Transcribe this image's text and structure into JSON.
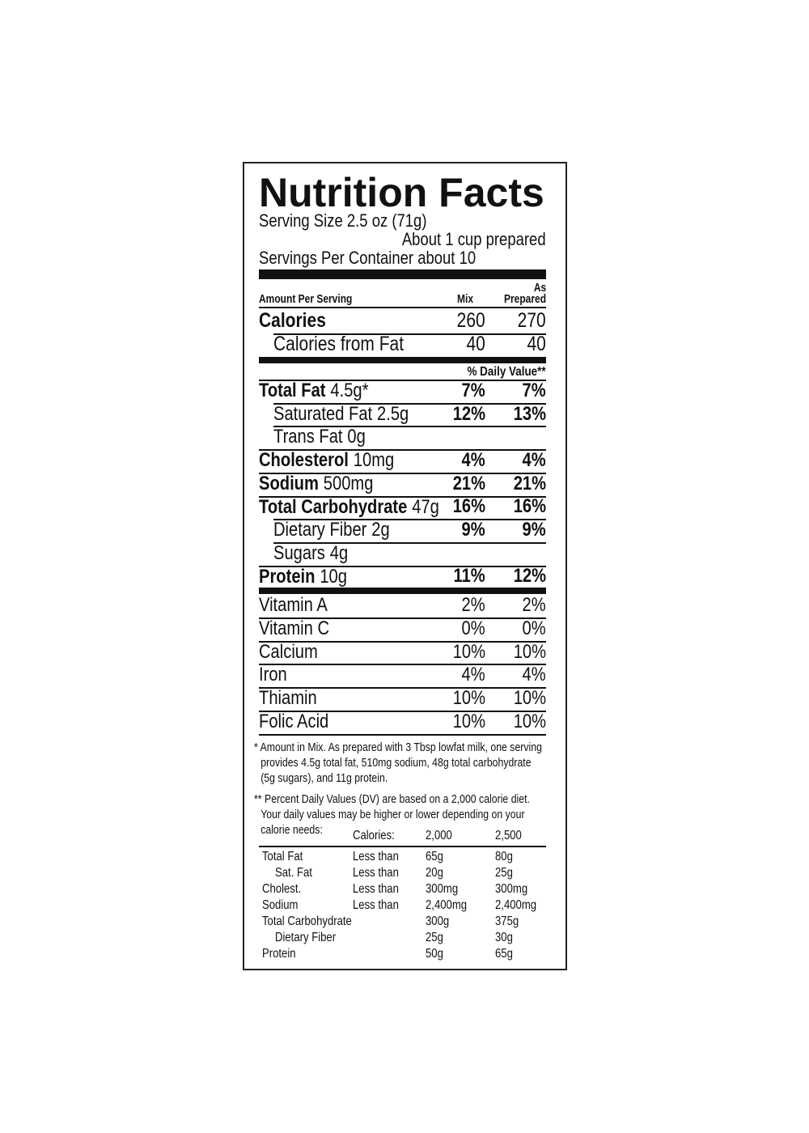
{
  "title": "Nutrition Facts",
  "serving_size": "Serving Size 2.5 oz (71g)",
  "serving_note": "About 1 cup prepared",
  "servings": "Servings Per Container about 10",
  "header": {
    "amount": "Amount Per Serving",
    "mix": "Mix",
    "prepared_as": "As",
    "prepared": "Prepared"
  },
  "calories": {
    "label": "Calories",
    "mix": "260",
    "prepared": "270"
  },
  "calories_fat": {
    "label": "Calories from Fat",
    "mix": "40",
    "prepared": "40"
  },
  "dv_header": "% Daily Value**",
  "nutrients": [
    {
      "name": "Total Fat",
      "amount": "4.5g*",
      "mix": "7%",
      "prepared": "7%"
    },
    {
      "name": "Saturated Fat",
      "amount": "2.5g",
      "mix": "12%",
      "prepared": "13%",
      "sub": true
    },
    {
      "name": "Trans Fat",
      "amount": "0g",
      "sub": true
    },
    {
      "name": "Cholesterol",
      "amount": "10mg",
      "mix": "4%",
      "prepared": "4%"
    },
    {
      "name": "Sodium",
      "amount": "500mg",
      "mix": "21%",
      "prepared": "21%"
    },
    {
      "name": "Total Carbohydrate",
      "amount": "47g",
      "mix": "16%",
      "prepared": "16%"
    },
    {
      "name": "Dietary Fiber",
      "amount": "2g",
      "mix": "9%",
      "prepared": "9%",
      "sub": true
    },
    {
      "name": "Sugars",
      "amount": "4g",
      "sub": true
    },
    {
      "name": "Protein",
      "amount": "10g",
      "mix": "11%",
      "prepared": "12%"
    }
  ],
  "vitamins": [
    {
      "name": "Vitamin A",
      "mix": "2%",
      "prepared": "2%"
    },
    {
      "name": "Vitamin C",
      "mix": "0%",
      "prepared": "0%"
    },
    {
      "name": "Calcium",
      "mix": "10%",
      "prepared": "10%"
    },
    {
      "name": "Iron",
      "mix": "4%",
      "prepared": "4%"
    },
    {
      "name": "Thiamin",
      "mix": "10%",
      "prepared": "10%"
    },
    {
      "name": "Folic Acid",
      "mix": "10%",
      "prepared": "10%"
    }
  ],
  "footnote_mix": "* Amount in Mix. As prepared with 3 Tbsp lowfat milk, one serving provides 4.5g total fat, 510mg sodium, 48g total carbohydrate (5g sugars), and 11g protein.",
  "footnote_dv": "** Percent Daily Values (DV) are based on a 2,000 calorie diet. Your daily values may be higher or lower depending on your calorie needs:",
  "dv_table": {
    "header": [
      "Calories:",
      "2,000",
      "2,500"
    ],
    "rows": [
      {
        "name": "Total Fat",
        "limit": "Less than",
        "v2000": "65g",
        "v2500": "80g"
      },
      {
        "name": "Sat. Fat",
        "limit": "Less than",
        "v2000": "20g",
        "v2500": "25g",
        "sub": true
      },
      {
        "name": "Cholest.",
        "limit": "Less than",
        "v2000": "300mg",
        "v2500": "300mg"
      },
      {
        "name": "Sodium",
        "limit": "Less than",
        "v2000": "2,400mg",
        "v2500": "2,400mg"
      },
      {
        "name": "Total Carbohydrate",
        "v2000": "300g",
        "v2500": "375g"
      },
      {
        "name": "Dietary Fiber",
        "v2000": "25g",
        "v2500": "30g",
        "sub": true
      },
      {
        "name": "Protein",
        "v2000": "50g",
        "v2500": "65g"
      }
    ]
  }
}
